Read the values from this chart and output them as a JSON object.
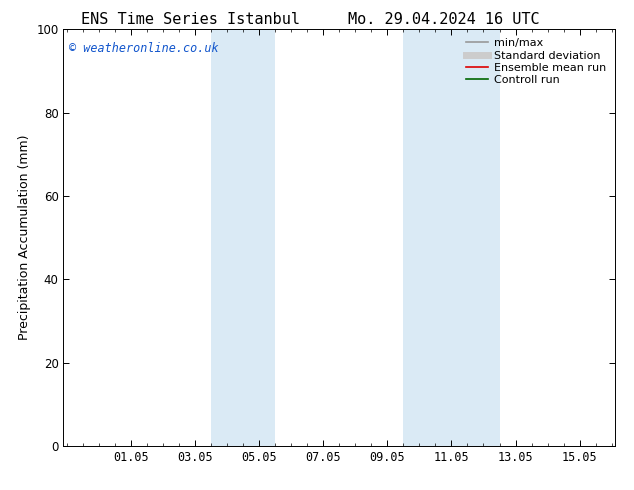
{
  "title_left": "ENS Time Series Istanbul",
  "title_right": "Mo. 29.04.2024 16 UTC",
  "ylabel": "Precipitation Accumulation (mm)",
  "ylim": [
    0,
    100
  ],
  "yticks": [
    0,
    20,
    40,
    60,
    80,
    100
  ],
  "xtick_labels": [
    "01.05",
    "03.05",
    "05.05",
    "07.05",
    "09.05",
    "11.05",
    "13.05",
    "15.05"
  ],
  "xtick_positions": [
    2,
    4,
    6,
    8,
    10,
    12,
    14,
    16
  ],
  "xlim": [
    -0.1,
    17.1
  ],
  "shaded_regions": [
    {
      "xmin": 4.5,
      "xmax": 6.5
    },
    {
      "xmin": 10.5,
      "xmax": 13.5
    }
  ],
  "shaded_color": "#daeaf5",
  "watermark_text": "© weatheronline.co.uk",
  "watermark_color": "#1155cc",
  "legend_items": [
    {
      "label": "min/max",
      "color": "#999999",
      "lw": 1.2
    },
    {
      "label": "Standard deviation",
      "color": "#cccccc",
      "lw": 5
    },
    {
      "label": "Ensemble mean run",
      "color": "#dd0000",
      "lw": 1.2
    },
    {
      "label": "Controll run",
      "color": "#006600",
      "lw": 1.2
    }
  ],
  "background_color": "#ffffff",
  "title_fontsize": 11,
  "label_fontsize": 9,
  "tick_fontsize": 8.5,
  "watermark_fontsize": 8.5,
  "legend_fontsize": 8
}
